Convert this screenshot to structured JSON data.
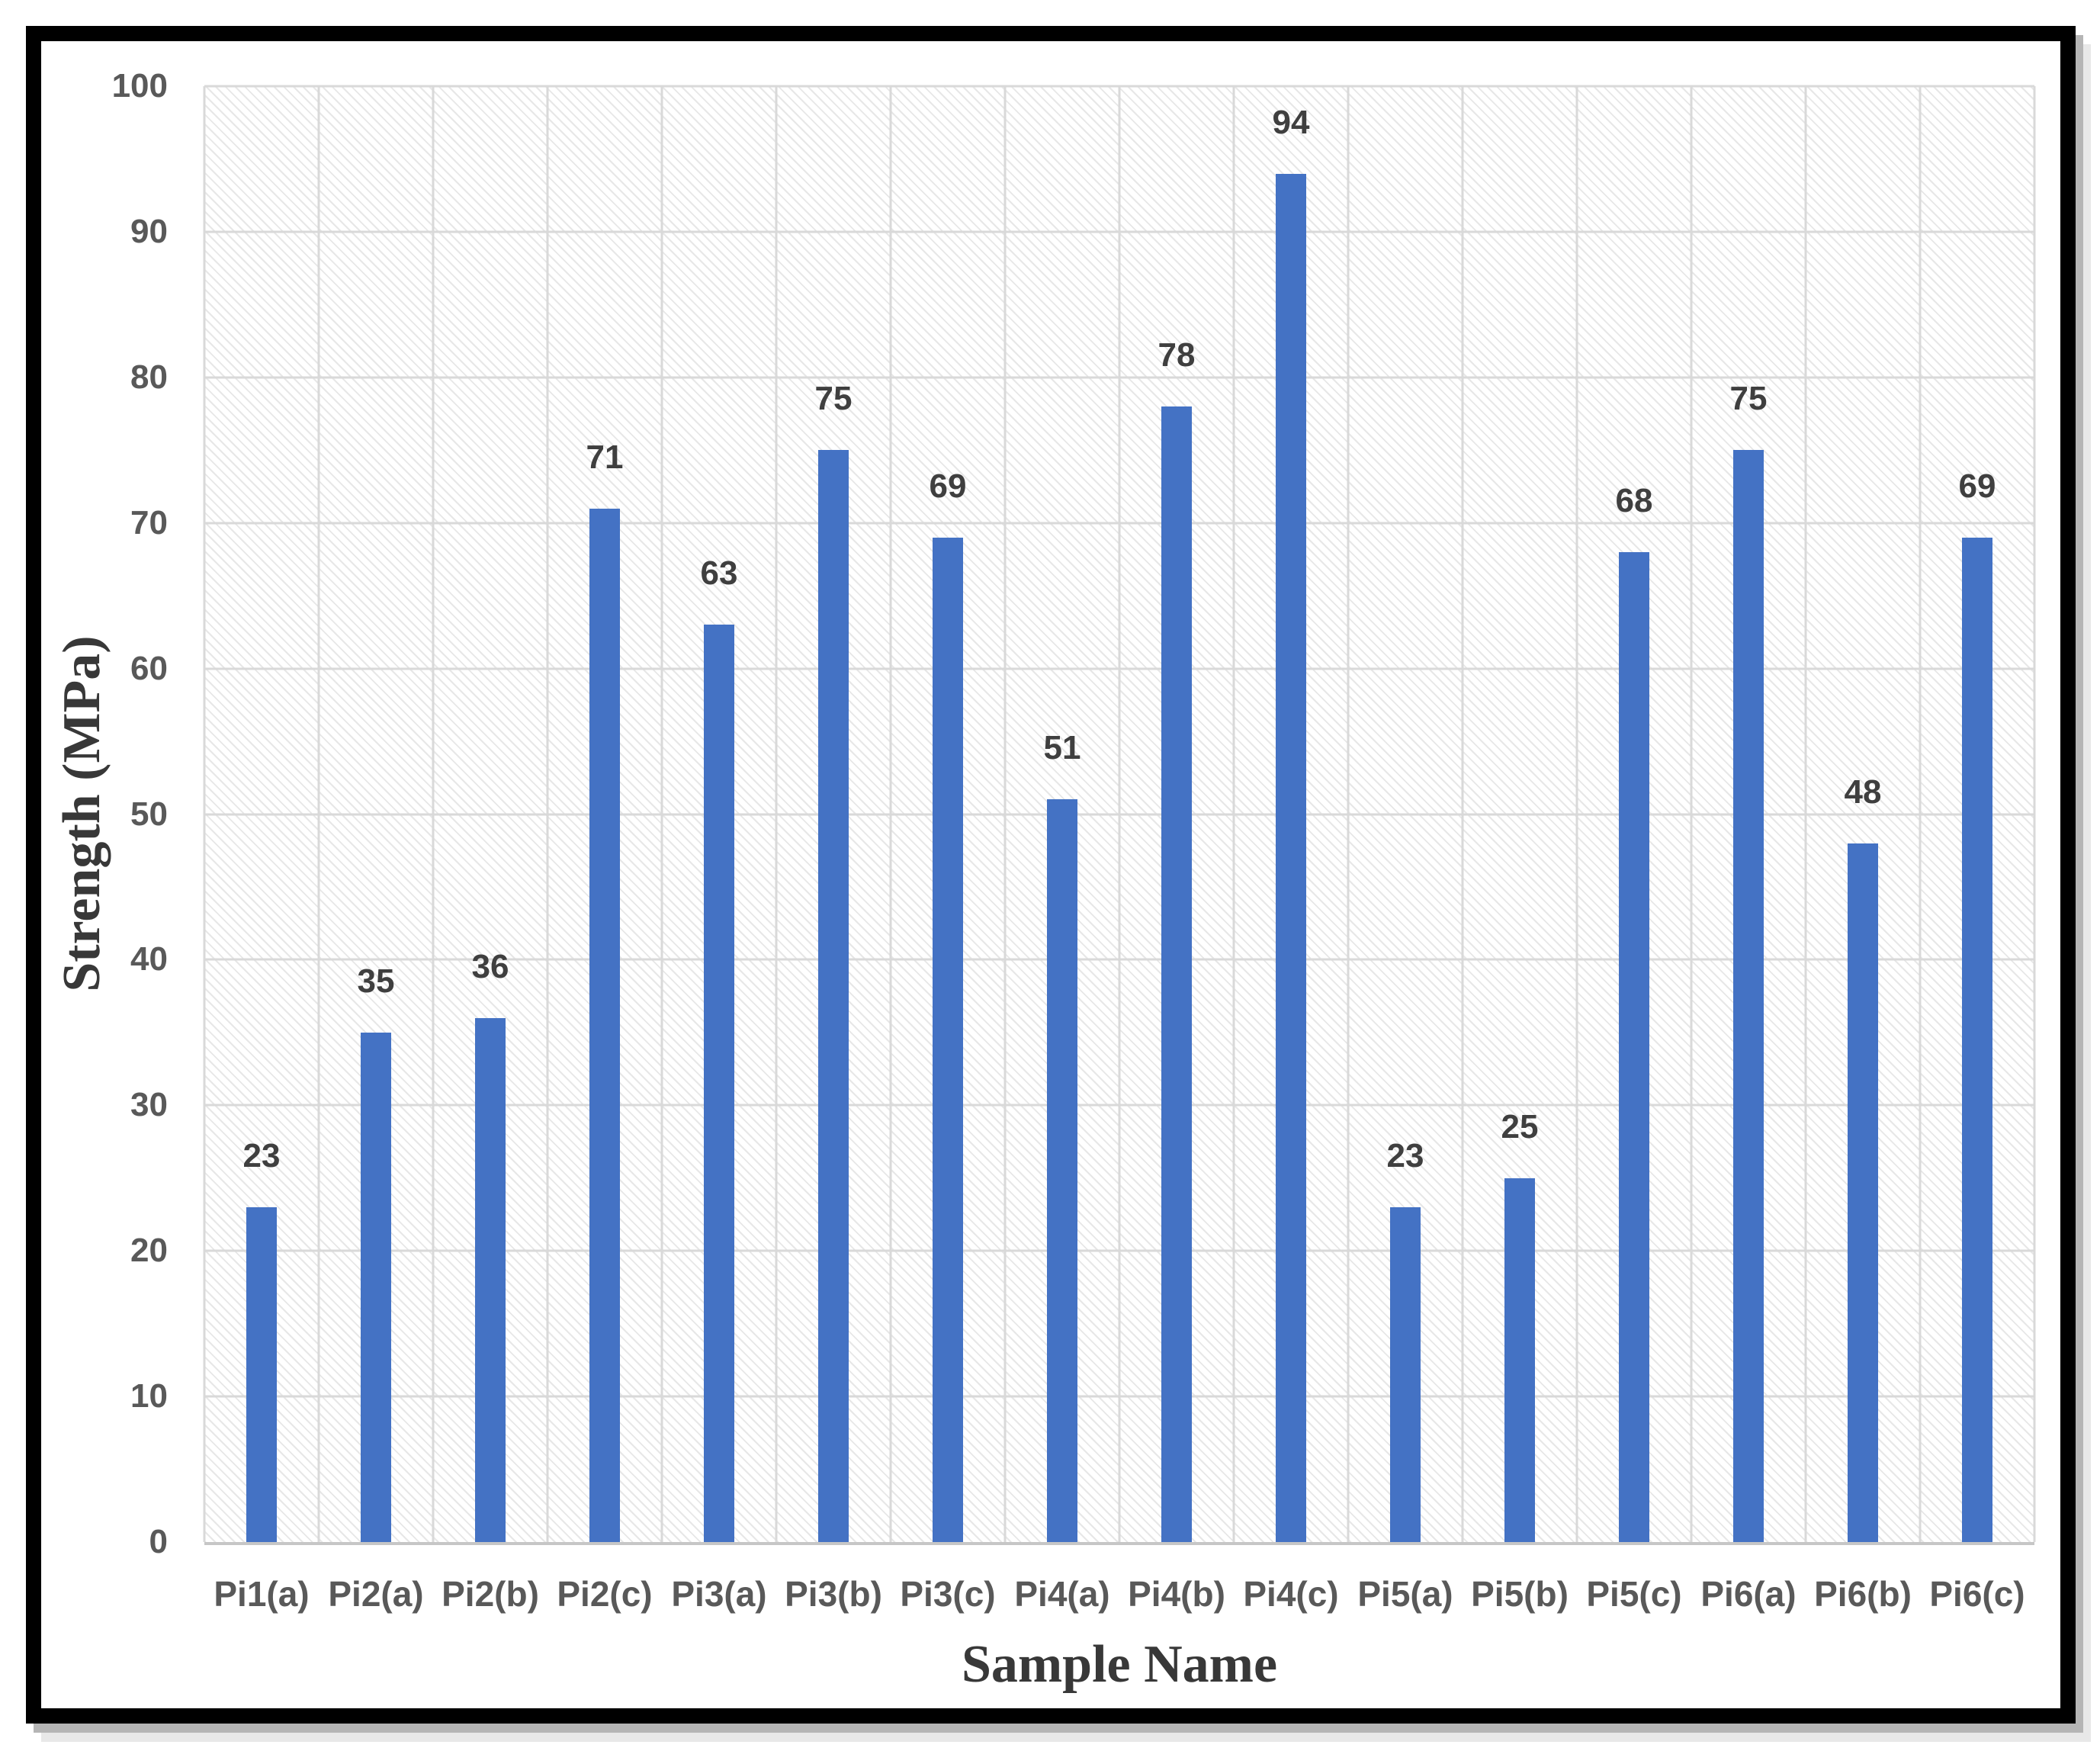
{
  "chart_data": {
    "type": "bar",
    "title": "",
    "xlabel": "Sample Name",
    "ylabel": "Strength (MPa)",
    "categories": [
      "Pi1(a)",
      "Pi2(a)",
      "Pi2(b)",
      "Pi2(c)",
      "Pi3(a)",
      "Pi3(b)",
      "Pi3(c)",
      "Pi4(a)",
      "Pi4(b)",
      "Pi4(c)",
      "Pi5(a)",
      "Pi5(b)",
      "Pi5(c)",
      "Pi6(a)",
      "Pi6(b)",
      "Pi6(c)"
    ],
    "values": [
      23,
      35,
      36,
      71,
      63,
      75,
      69,
      51,
      78,
      94,
      23,
      25,
      68,
      75,
      48,
      69
    ],
    "ylim": [
      0,
      100
    ],
    "y_ticks": [
      0,
      10,
      20,
      30,
      40,
      50,
      60,
      70,
      80,
      90,
      100
    ],
    "grid": true,
    "legend_position": "none",
    "colors": {
      "bar": "#4472C4",
      "gridline": "#D9D9D9",
      "tick_text": "#595959",
      "value_text": "#3F3F3F",
      "title_text": "#383838",
      "frame_border": "#000000"
    }
  }
}
